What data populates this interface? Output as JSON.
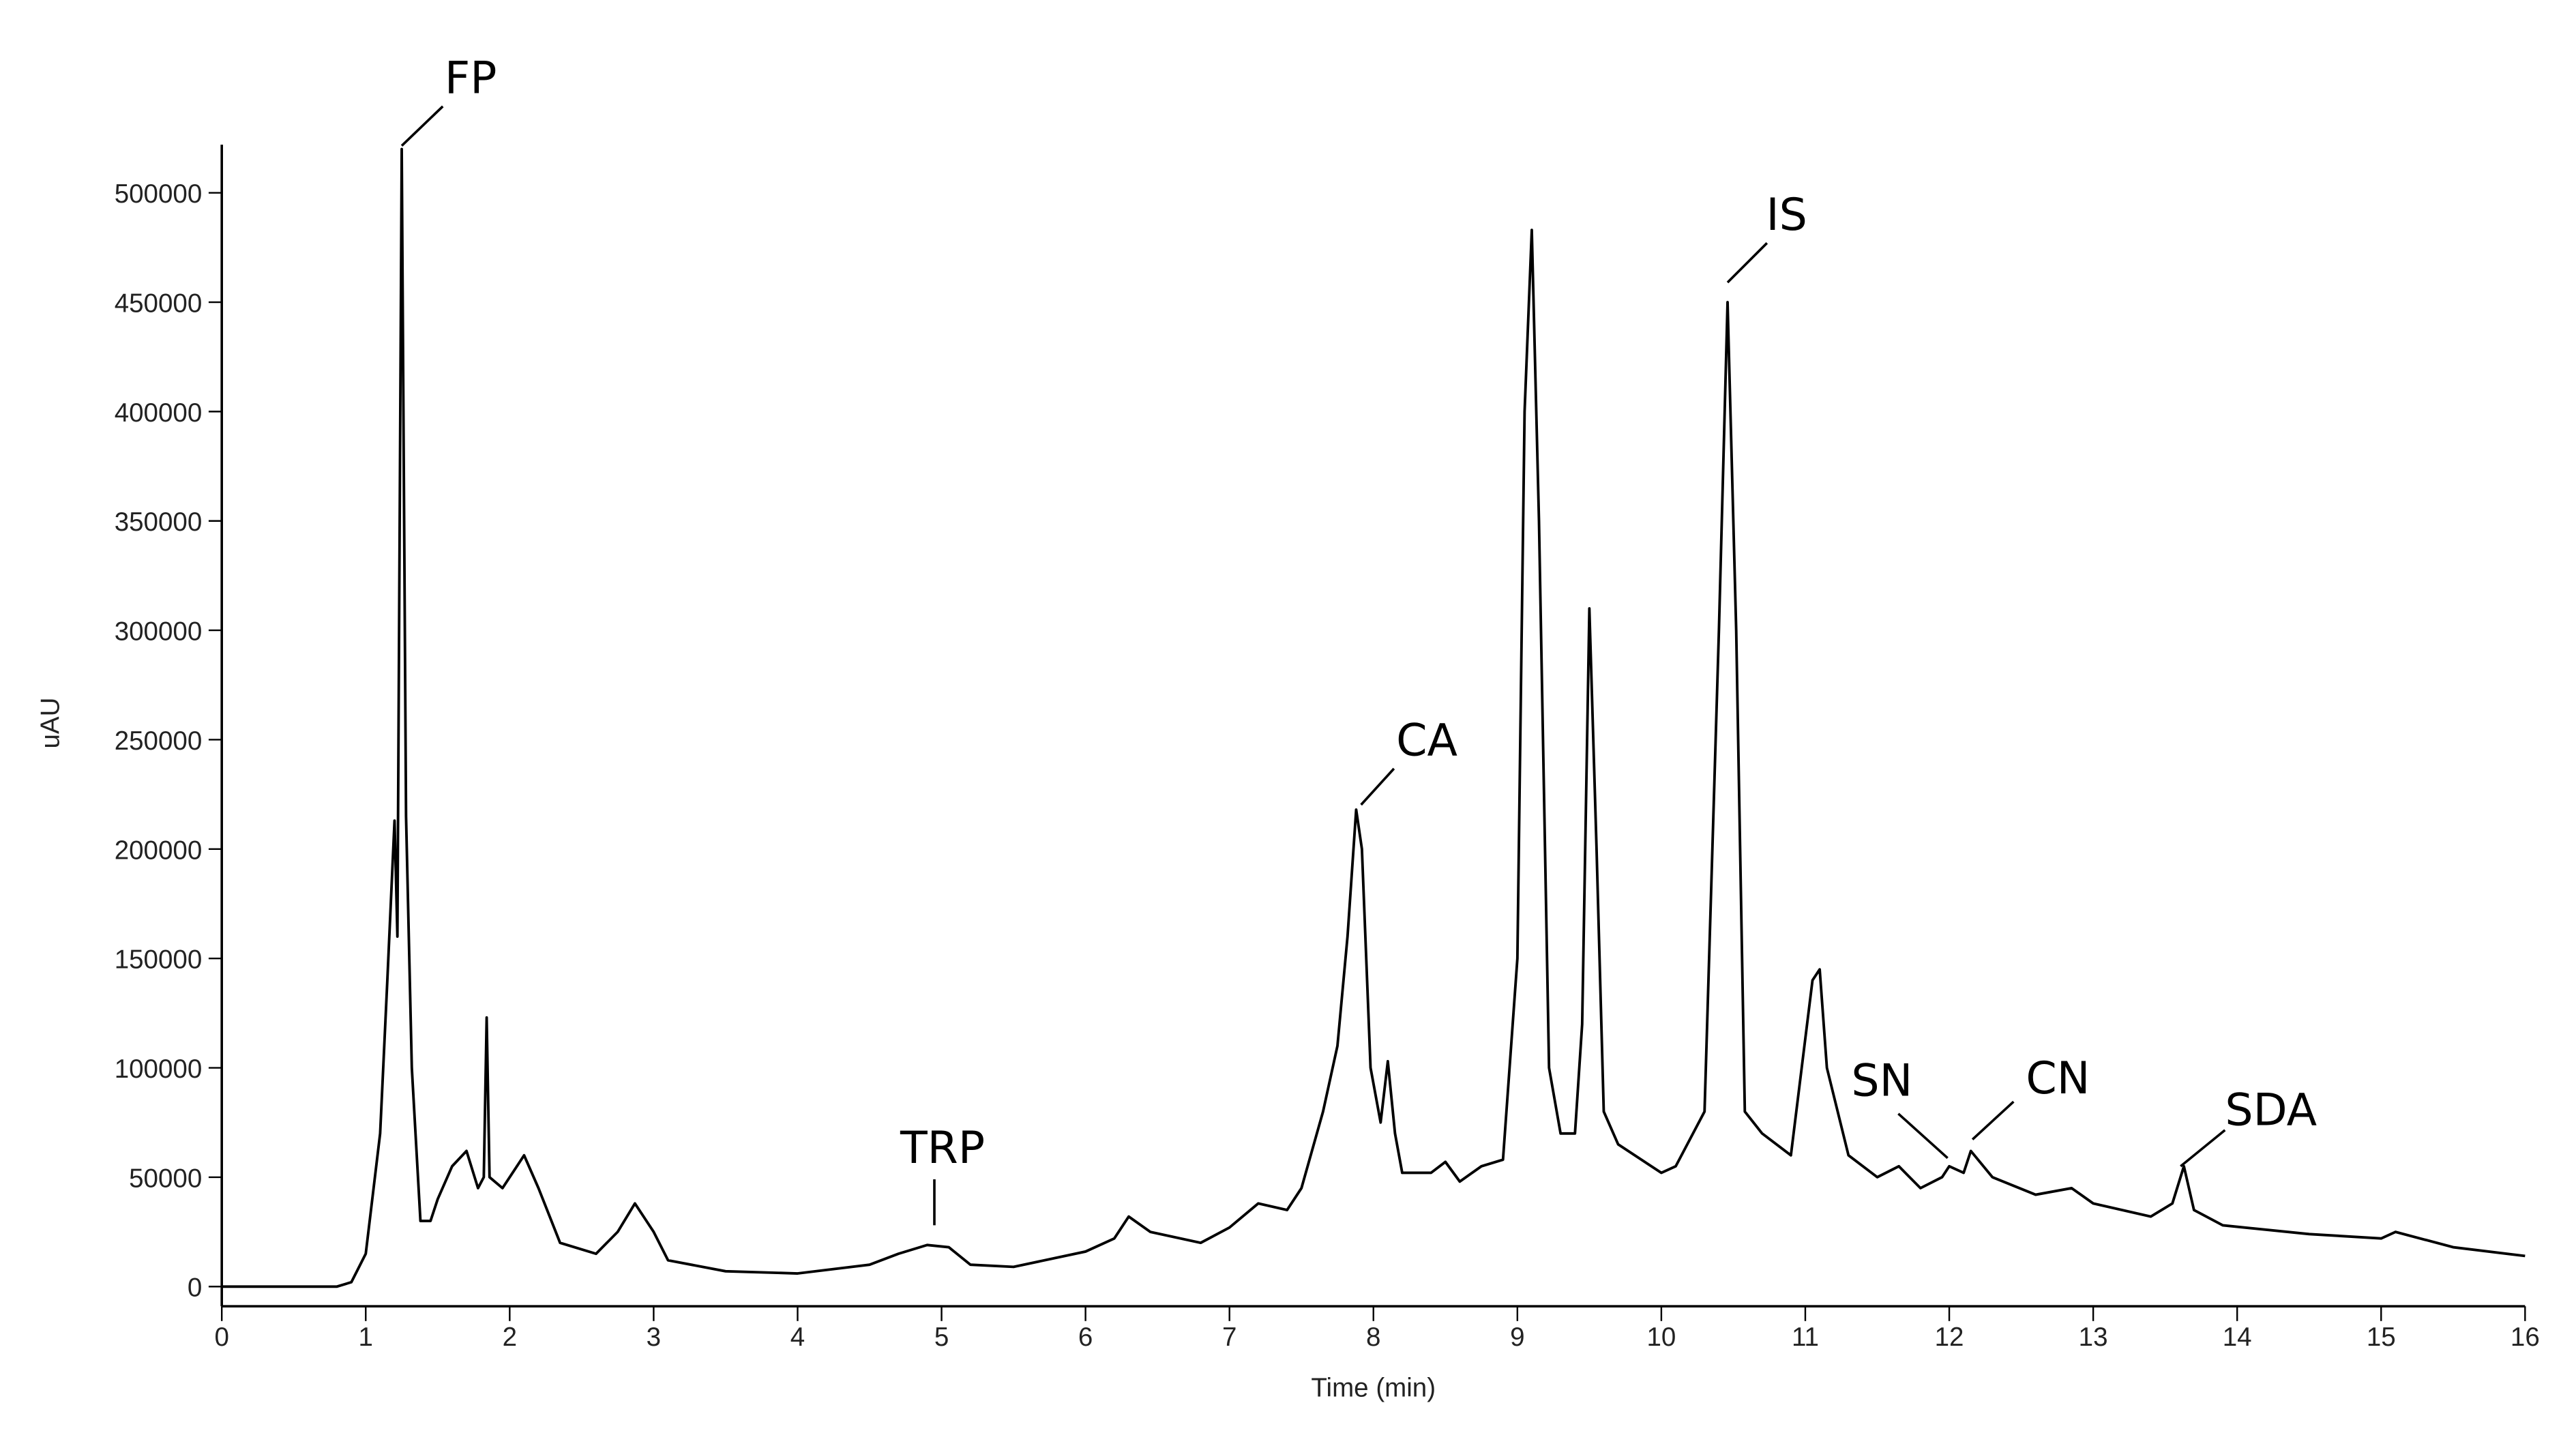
{
  "chart_data": {
    "type": "line",
    "x_label": "Time (min)",
    "y_label": "uAU",
    "color": "#000000",
    "xlim": [
      0,
      16
    ],
    "xticks": [
      0,
      1,
      2,
      3,
      4,
      5,
      6,
      7,
      8,
      9,
      10,
      11,
      12,
      13,
      14,
      15,
      16
    ],
    "ylim": [
      -9000,
      522000
    ],
    "yticks": [
      0,
      50000,
      100000,
      150000,
      200000,
      250000,
      300000,
      350000,
      400000,
      450000,
      500000
    ],
    "x": [
      0,
      0.8,
      0.9,
      1.0,
      1.1,
      1.15,
      1.2,
      1.22,
      1.25,
      1.28,
      1.32,
      1.38,
      1.45,
      1.5,
      1.6,
      1.7,
      1.78,
      1.82,
      1.84,
      1.86,
      1.95,
      2.1,
      2.2,
      2.35,
      2.6,
      2.75,
      2.87,
      3.0,
      3.1,
      3.5,
      4.0,
      4.5,
      4.7,
      4.9,
      5.05,
      5.2,
      5.5,
      6.0,
      6.2,
      6.3,
      6.45,
      6.8,
      7.0,
      7.2,
      7.4,
      7.5,
      7.65,
      7.75,
      7.82,
      7.88,
      7.92,
      7.98,
      8.05,
      8.1,
      8.15,
      8.2,
      8.4,
      8.5,
      8.6,
      8.75,
      8.9,
      9.0,
      9.05,
      9.1,
      9.15,
      9.22,
      9.3,
      9.4,
      9.45,
      9.5,
      9.55,
      9.6,
      9.7,
      10.0,
      10.1,
      10.3,
      10.4,
      10.46,
      10.52,
      10.58,
      10.7,
      10.9,
      11.05,
      11.1,
      11.15,
      11.3,
      11.5,
      11.65,
      11.8,
      11.95,
      12.0,
      12.1,
      12.15,
      12.3,
      12.6,
      12.85,
      13.0,
      13.4,
      13.55,
      13.63,
      13.7,
      13.9,
      14.5,
      15.0,
      15.1,
      15.5,
      16.0
    ],
    "values": [
      0,
      0,
      2000,
      15000,
      70000,
      140000,
      213000,
      160000,
      520000,
      215000,
      100000,
      30000,
      30000,
      40000,
      55000,
      62000,
      45000,
      50000,
      123000,
      50000,
      45000,
      60000,
      45000,
      20000,
      15000,
      25000,
      38000,
      25000,
      12000,
      7000,
      6000,
      10000,
      15000,
      19000,
      18000,
      10000,
      9000,
      16000,
      22000,
      32000,
      25000,
      20000,
      27000,
      38000,
      35000,
      45000,
      80000,
      110000,
      160000,
      218000,
      200000,
      100000,
      75000,
      103000,
      70000,
      52000,
      52000,
      57000,
      48000,
      55000,
      58000,
      150000,
      400000,
      483000,
      350000,
      100000,
      70000,
      70000,
      120000,
      310000,
      200000,
      80000,
      65000,
      52000,
      55000,
      80000,
      300000,
      450000,
      300000,
      80000,
      70000,
      60000,
      140000,
      145000,
      100000,
      60000,
      50000,
      55000,
      45000,
      50000,
      55000,
      52000,
      62000,
      50000,
      42000,
      45000,
      38000,
      32000,
      38000,
      55000,
      35000,
      28000,
      24000,
      22000,
      25000,
      18000,
      14000
    ],
    "annotations": [
      {
        "text": "FP",
        "x": 1.25,
        "y": 520000
      },
      {
        "text": "TRP",
        "x": 4.95,
        "y": 19000
      },
      {
        "text": "CA",
        "x": 7.88,
        "y": 218000
      },
      {
        "text": "IS",
        "x": 10.46,
        "y": 450000
      },
      {
        "text": "SN",
        "x": 12.0,
        "y": 55000
      },
      {
        "text": "CN",
        "x": 12.15,
        "y": 62000
      },
      {
        "text": "SDA",
        "x": 13.63,
        "y": 55000
      }
    ]
  }
}
